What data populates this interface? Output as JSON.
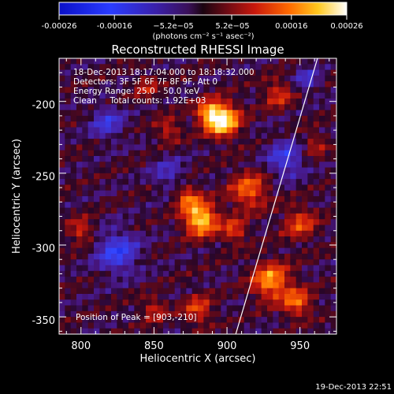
{
  "chart_data": {
    "type": "heatmap",
    "title": "Reconstructed RHESSI Image",
    "xlabel": "Heliocentric X (arcsec)",
    "ylabel": "Heliocentric Y (arcsec)",
    "xlim": [
      785,
      975
    ],
    "ylim": [
      -362,
      -170
    ],
    "x_ticks": [
      800,
      850,
      900,
      950
    ],
    "y_ticks": [
      -200,
      -250,
      -300,
      -350
    ],
    "colorbar": {
      "range": [
        -0.00026,
        0.00026
      ],
      "ticks": [
        "-0.00026",
        "-0.00016",
        "−5.2e−05",
        "5.2e−05",
        "0.00016",
        "0.00026"
      ],
      "tick_values": [
        -0.00026,
        -0.00016,
        -5.2e-05,
        5.2e-05,
        0.00016,
        0.00026
      ],
      "unit_label": "(photons cm⁻² s⁻¹ asec⁻²)"
    },
    "info_lines": [
      "18-Dec-2013 18:17:04.000 to 18:18:32.000",
      "Detectors: 3F 5F 6F 7F 8F 9F, Att 0",
      "Energy Range: 25.0 - 50.0 keV",
      "Clean     Total counts: 1.92E+03"
    ],
    "peak_label": "Position of Peak = [903,-210]",
    "peak": [
      903,
      -210
    ],
    "limb": [
      [
        906,
        -362
      ],
      [
        962,
        -170
      ]
    ],
    "sources": [
      {
        "x": 897,
        "y": -213,
        "sigma": 8,
        "amp": 1.0
      },
      {
        "x": 887,
        "y": -208,
        "sigma": 6,
        "amp": 0.55
      },
      {
        "x": 882,
        "y": -282,
        "sigma": 8,
        "amp": 0.9
      },
      {
        "x": 873,
        "y": -267,
        "sigma": 6,
        "amp": 0.5
      },
      {
        "x": 915,
        "y": -262,
        "sigma": 9,
        "amp": 0.55
      },
      {
        "x": 905,
        "y": -290,
        "sigma": 6,
        "amp": 0.45
      },
      {
        "x": 930,
        "y": -325,
        "sigma": 9,
        "amp": 0.7
      },
      {
        "x": 948,
        "y": -340,
        "sigma": 7,
        "amp": 0.55
      },
      {
        "x": 880,
        "y": -345,
        "sigma": 7,
        "amp": 0.45
      },
      {
        "x": 850,
        "y": -345,
        "sigma": 6,
        "amp": 0.35
      },
      {
        "x": 950,
        "y": -285,
        "sigma": 8,
        "amp": 0.45
      },
      {
        "x": 935,
        "y": -195,
        "sigma": 7,
        "amp": 0.4
      },
      {
        "x": 860,
        "y": -220,
        "sigma": 6,
        "amp": 0.35
      },
      {
        "x": 800,
        "y": -290,
        "sigma": 6,
        "amp": 0.4
      },
      {
        "x": 845,
        "y": -190,
        "sigma": 6,
        "amp": 0.3
      },
      {
        "x": 960,
        "y": -230,
        "sigma": 6,
        "amp": 0.3
      },
      {
        "x": 825,
        "y": -305,
        "sigma": 10,
        "amp": -0.55
      },
      {
        "x": 940,
        "y": -240,
        "sigma": 9,
        "amp": -0.45
      },
      {
        "x": 818,
        "y": -215,
        "sigma": 8,
        "amp": -0.4
      },
      {
        "x": 860,
        "y": -250,
        "sigma": 8,
        "amp": -0.3
      },
      {
        "x": 955,
        "y": -185,
        "sigma": 6,
        "amp": -0.35
      }
    ]
  },
  "footer": {
    "timestamp": "19-Dec-2013 22:51"
  }
}
